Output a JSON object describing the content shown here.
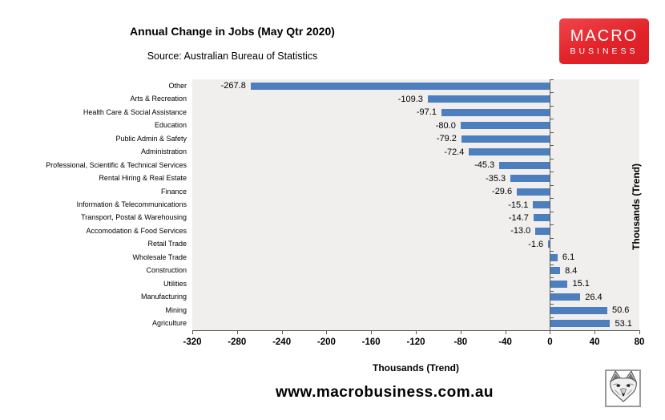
{
  "header": {
    "title": "Annual Change in Jobs (May Qtr 2020)",
    "source": "Source: Australian Bureau of Statistics"
  },
  "brand": {
    "line1": "MACRO",
    "line2": "BUSINESS",
    "bg_color": "#e22329",
    "text_color": "#ffffff"
  },
  "chart_data": {
    "type": "bar",
    "orientation": "horizontal",
    "title": "Annual Change in Jobs (May Qtr 2020)",
    "subtitle": "Source: Australian Bureau of Statistics",
    "categories": [
      "Other",
      "Arts & Recreation",
      "Health Care & Social Assistance",
      "Education",
      "Public Admin & Safety",
      "Administration",
      "Professional, Scientific & Technical Services",
      "Rental Hiring & Real Estate",
      "Finance",
      "Information & Telecommunications",
      "Transport, Postal & Warehousing",
      "Accomodation & Food Services",
      "Retail Trade",
      "Wholesale Trade",
      "Construction",
      "Utilities",
      "Manufacturing",
      "Mining",
      "Agriculture"
    ],
    "values": [
      -267.8,
      -109.3,
      -97.1,
      -80.0,
      -79.2,
      -72.4,
      -45.3,
      -35.3,
      -29.6,
      -15.1,
      -14.7,
      -13.0,
      -1.6,
      6.1,
      8.4,
      15.1,
      26.4,
      50.6,
      53.1
    ],
    "value_labels": [
      "-267.8",
      "-109.3",
      "-97.1",
      "-80.0",
      "-79.2",
      "-72.4",
      "-45.3",
      "-35.3",
      "-29.6",
      "-15.1",
      "-14.7",
      "-13.0",
      "-1.6",
      "6.1",
      "8.4",
      "15.1",
      "26.4",
      "50.6",
      "53.1"
    ],
    "xlabel": "Thousands (Trend)",
    "ylabel_right": "Thousands (Trend)",
    "xlim": [
      -320,
      80
    ],
    "xticks": [
      -320,
      -280,
      -240,
      -200,
      -160,
      -120,
      -80,
      -40,
      0,
      40,
      80
    ],
    "xtick_labels": [
      "-320",
      "-280",
      "-240",
      "-200",
      "-160",
      "-120",
      "-80",
      "-40",
      "0",
      "40",
      "80"
    ],
    "bar_color": "#4d7fbe",
    "plot_bg": "#f0efee",
    "axis_color": "#595959",
    "grid": false,
    "legend": false,
    "data_labels": "outside-end"
  },
  "footer": {
    "url": "www.macrobusiness.com.au"
  },
  "icons": {
    "fox_logo": "fox-head-sketch"
  }
}
